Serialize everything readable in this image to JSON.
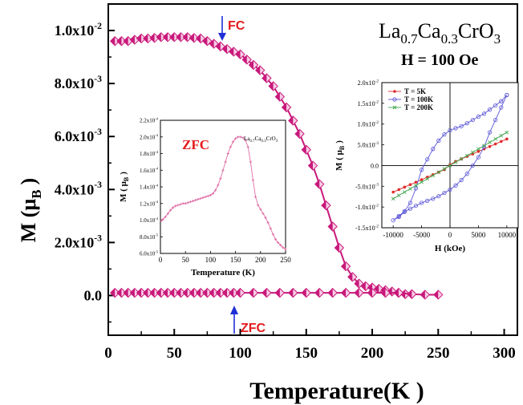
{
  "colors": {
    "fc": "#c8197a",
    "fc_fill": "#f7cde5",
    "zfc_inset": "#e06ea5",
    "arrow": "#1f2fd6",
    "label_red": "#e41a1c",
    "t5k": "#e02a2a",
    "t100k": "#5a55d6",
    "t200k": "#45a850",
    "axis": "#000000"
  },
  "main": {
    "ylabel_main": "M (",
    "ylabel_sym": "μ",
    "ylabel_sub": "B",
    "ylabel_close": ")",
    "xlabel": "Temperature(K )",
    "title_base": "La",
    "title_sub1": "0.7",
    "title_mid": "Ca",
    "title_sub2": "0.3",
    "title_end": "CrO",
    "title_sub3": "3",
    "field": "H = 100 Oe",
    "fc_label": "FC",
    "zfc_label": "ZFC",
    "yticks": [
      {
        "v": 0,
        "base": "0.0",
        "exp": ""
      },
      {
        "v": 0.002,
        "base": "2.0x10",
        "exp": "-3"
      },
      {
        "v": 0.004,
        "base": "4.0x10",
        "exp": "-3"
      },
      {
        "v": 0.006,
        "base": "6.0x10",
        "exp": "-3"
      },
      {
        "v": 0.008,
        "base": "8.0x10",
        "exp": "-3"
      },
      {
        "v": 0.01,
        "base": "1.0x10",
        "exp": "-2"
      }
    ],
    "xticks": [
      "0",
      "50",
      "100",
      "150",
      "200",
      "250",
      "300"
    ]
  },
  "inset_zfc": {
    "label": "ZFC",
    "xlabel": "Temperature (K)",
    "ylabel": "M ( μ",
    "ylabel_sub": "B",
    "ylabel_close": ")",
    "legend_base": "La",
    "legend_sub1": "0.7",
    "legend_mid": "Ca",
    "legend_sub2": "0.3",
    "legend_end": "CrO",
    "legend_sub3": "3",
    "xticks": [
      "0",
      "50",
      "100",
      "150",
      "200",
      "250"
    ],
    "yticks": [
      {
        "v": 6e-05,
        "base": "6.0x10",
        "exp": "-5"
      },
      {
        "v": 8e-05,
        "base": "8.0x10",
        "exp": "-5"
      },
      {
        "v": 0.0001,
        "base": "1.0x10",
        "exp": "-4"
      },
      {
        "v": 0.00012,
        "base": "1.2x10",
        "exp": "-4"
      },
      {
        "v": 0.00014,
        "base": "1.4x10",
        "exp": "-4"
      },
      {
        "v": 0.00016,
        "base": "1.6x10",
        "exp": "-4"
      },
      {
        "v": 0.00018,
        "base": "1.8x10",
        "exp": "-4"
      },
      {
        "v": 0.0002,
        "base": "2.0x10",
        "exp": "-4"
      },
      {
        "v": 0.00022,
        "base": "2.2x10",
        "exp": "-4"
      }
    ]
  },
  "inset_mh": {
    "xlabel": "H (kOe)",
    "ylabel": "M ( μ",
    "ylabel_sub": "B",
    "ylabel_close": ")",
    "xticks": [
      "-10000",
      "-5000",
      "0",
      "5000",
      "10000"
    ],
    "yticks": [
      {
        "v": -0.015,
        "base": "-1.5x10",
        "exp": "-2"
      },
      {
        "v": -0.01,
        "base": "-1.0x10",
        "exp": "-2"
      },
      {
        "v": -0.005,
        "base": "-5.0x10",
        "exp": "-3"
      },
      {
        "v": 0,
        "base": "0.0",
        "exp": ""
      },
      {
        "v": 0.005,
        "base": "5.0x10",
        "exp": "-3"
      },
      {
        "v": 0.01,
        "base": "1.0x10",
        "exp": "-2"
      },
      {
        "v": 0.015,
        "base": "1.5x10",
        "exp": "-2"
      },
      {
        "v": 0.02,
        "base": "2.0x10",
        "exp": "-2"
      }
    ],
    "legend": [
      "T = 5K",
      "T = 100K",
      "T = 200K"
    ]
  },
  "chart_data": [
    {
      "type": "line",
      "xlabel": "Temperature(K )",
      "ylabel": "M (μB)",
      "xlim": [
        0,
        310
      ],
      "ylim": [
        -0.0015,
        0.011
      ],
      "series": [
        {
          "name": "FC",
          "x": [
            5,
            10,
            15,
            20,
            25,
            30,
            35,
            40,
            45,
            50,
            55,
            60,
            65,
            70,
            75,
            80,
            85,
            90,
            95,
            100,
            105,
            110,
            115,
            120,
            125,
            130,
            135,
            140,
            145,
            150,
            155,
            160,
            165,
            170,
            175,
            180,
            185,
            190,
            195,
            200,
            205,
            210,
            215,
            220,
            225
          ],
          "y": [
            0.0096,
            0.0096,
            0.0096,
            0.00965,
            0.0097,
            0.0097,
            0.00972,
            0.00975,
            0.00975,
            0.00975,
            0.00975,
            0.00975,
            0.00972,
            0.0097,
            0.0096,
            0.0095,
            0.0094,
            0.0093,
            0.0092,
            0.0091,
            0.0089,
            0.0087,
            0.0085,
            0.0082,
            0.0079,
            0.0075,
            0.0071,
            0.0066,
            0.0061,
            0.0055,
            0.0049,
            0.0042,
            0.0034,
            0.0026,
            0.0018,
            0.0011,
            0.0007,
            0.00045,
            0.00035,
            0.0003,
            0.00025,
            0.0002,
            0.00015,
            0.0001,
            5e-05
          ]
        },
        {
          "name": "ZFC",
          "x": [
            5,
            10,
            15,
            20,
            25,
            30,
            35,
            40,
            45,
            50,
            55,
            60,
            65,
            70,
            75,
            80,
            85,
            90,
            95,
            100,
            110,
            120,
            130,
            140,
            150,
            160,
            170,
            180,
            190,
            200,
            210,
            220,
            230,
            240,
            250
          ],
          "y": [
            0.0001,
            0.0001,
            0.0001,
            0.0001,
            0.0001,
            0.0001,
            0.0001,
            0.0001,
            0.0001,
            0.0001,
            0.0001,
            0.0001,
            0.0001,
            0.0001,
            0.0001,
            0.0001,
            0.0001,
            0.0001,
            0.0001,
            0.0001,
            0.0001,
            0.0001,
            0.0001,
            0.0001,
            0.0001,
            0.0001,
            0.0001,
            0.0001,
            0.0001,
            0.0001,
            0.0001,
            0.0001,
            5e-05,
            3e-05,
            3e-05
          ]
        }
      ]
    },
    {
      "type": "line",
      "title": "ZFC",
      "xlabel": "Temperature (K)",
      "ylabel": "M (μB)",
      "xlim": [
        0,
        250
      ],
      "ylim": [
        6e-05,
        0.00022
      ],
      "series": [
        {
          "name": "ZFC",
          "x": [
            2,
            5,
            10,
            15,
            20,
            25,
            30,
            35,
            40,
            45,
            50,
            55,
            60,
            65,
            70,
            75,
            80,
            85,
            90,
            95,
            100,
            105,
            110,
            115,
            120,
            125,
            130,
            135,
            140,
            145,
            150,
            155,
            160,
            165,
            170,
            175,
            180,
            185,
            190,
            195,
            200,
            205,
            210,
            215,
            220,
            225,
            230,
            235,
            240,
            245,
            250
          ],
          "y": [
            9.95e-05,
            0.000101,
            0.000104,
            0.000108,
            0.000112,
            0.000115,
            0.000117,
            0.000118,
            0.000119,
            0.00012,
            0.00012,
            0.000121,
            0.000122,
            0.000123,
            0.000124,
            0.000125,
            0.000126,
            0.000127,
            0.000128,
            0.000129,
            0.00013,
            0.000132,
            0.000136,
            0.000142,
            0.00015,
            0.00016,
            0.00017,
            0.00018,
            0.000188,
            0.000194,
            0.000198,
            0.0002,
            0.0002,
            0.000199,
            0.000196,
            0.000188,
            0.00017,
            0.000148,
            0.000128,
            0.000118,
            0.000113,
            0.000108,
            0.000103,
            9.7e-05,
            9e-05,
            8.3e-05,
            7.7e-05,
            7.3e-05,
            7e-05,
            6.7e-05,
            6.5e-05
          ]
        }
      ]
    },
    {
      "type": "line",
      "xlabel": "H (kOe)",
      "ylabel": "M (μB)",
      "xlim": [
        -12000,
        12000
      ],
      "ylim": [
        -0.015,
        0.02
      ],
      "series": [
        {
          "name": "T = 5K",
          "x": [
            -10000,
            -9000,
            -8000,
            -7000,
            -6000,
            -5000,
            -4000,
            -3000,
            -2000,
            -1000,
            0,
            1000,
            2000,
            3000,
            4000,
            5000,
            6000,
            7000,
            8000,
            9000,
            10000
          ],
          "y": [
            -0.0064,
            -0.0058,
            -0.0052,
            -0.0046,
            -0.004,
            -0.0034,
            -0.0028,
            -0.0022,
            -0.0016,
            -0.001,
            0.0002,
            0.001,
            0.0016,
            0.0022,
            0.0028,
            0.0034,
            0.004,
            0.0046,
            0.0052,
            0.0058,
            0.0064
          ]
        },
        {
          "name": "T = 100K",
          "x": [
            10000,
            9000,
            8000,
            7000,
            6000,
            5000,
            4000,
            3000,
            2000,
            1000,
            0,
            -1000,
            -2000,
            -3000,
            -4000,
            -5000,
            -6000,
            -7000,
            -8000,
            -9000,
            -10000,
            -9000,
            -8000,
            -7000,
            -6000,
            -5000,
            -4000,
            -3000,
            -2000,
            -1000,
            0,
            1000,
            2000,
            3000,
            4000,
            5000,
            6000,
            7000,
            8000,
            9000,
            10000
          ],
          "y": [
            0.017,
            0.0155,
            0.0145,
            0.0135,
            0.0125,
            0.0118,
            0.011,
            0.0102,
            0.0095,
            0.009,
            0.0085,
            0.0075,
            0.006,
            0.004,
            0.0015,
            -0.001,
            -0.0055,
            -0.009,
            -0.011,
            -0.0122,
            -0.0132,
            -0.0124,
            -0.0112,
            -0.0104,
            -0.0097,
            -0.009,
            -0.0085,
            -0.008,
            -0.0074,
            -0.0066,
            -0.0058,
            -0.0048,
            -0.0035,
            -0.002,
            0.0,
            0.002,
            0.0045,
            0.008,
            0.011,
            0.014,
            0.017
          ]
        },
        {
          "name": "T = 200K",
          "x": [
            -10000,
            -9000,
            -8000,
            -7000,
            -6000,
            -5000,
            -4000,
            -3000,
            -2000,
            -1000,
            0,
            1000,
            2000,
            3000,
            4000,
            5000,
            6000,
            7000,
            8000,
            9000,
            10000
          ],
          "y": [
            -0.008,
            -0.0072,
            -0.0064,
            -0.0056,
            -0.0048,
            -0.004,
            -0.0032,
            -0.0024,
            -0.0016,
            -0.0008,
            0.0,
            0.0008,
            0.0016,
            0.0024,
            0.0032,
            0.004,
            0.0048,
            0.0056,
            0.0064,
            0.0072,
            0.008
          ]
        }
      ]
    }
  ]
}
